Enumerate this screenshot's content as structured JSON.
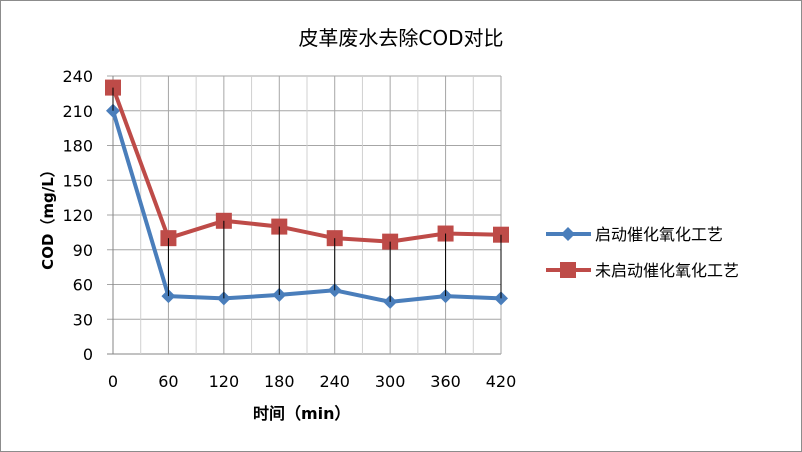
{
  "chart_data": {
    "type": "line",
    "title": "皮革废水去除COD对比",
    "xlabel": "时间（min）",
    "ylabel": "COD（mg/L）",
    "x": [
      0,
      60,
      120,
      180,
      240,
      300,
      360,
      420
    ],
    "xticks": [
      "0",
      "60",
      "120",
      "180",
      "240",
      "300",
      "360",
      "420"
    ],
    "yticks": [
      "0",
      "30",
      "60",
      "90",
      "120",
      "150",
      "180",
      "210",
      "240"
    ],
    "ylim": [
      0,
      240
    ],
    "grid": true,
    "drop_lines": true,
    "legend_position": "right",
    "series": [
      {
        "name": "启动催化氧化工艺",
        "color": "#4a7ebb",
        "marker": "diamond",
        "values": [
          210,
          50,
          48,
          51,
          55,
          45,
          50,
          48
        ]
      },
      {
        "name": "未启动催化氧化工艺",
        "color": "#be4b48",
        "marker": "square",
        "values": [
          230,
          100,
          115,
          110,
          100,
          97,
          104,
          103
        ]
      }
    ]
  }
}
